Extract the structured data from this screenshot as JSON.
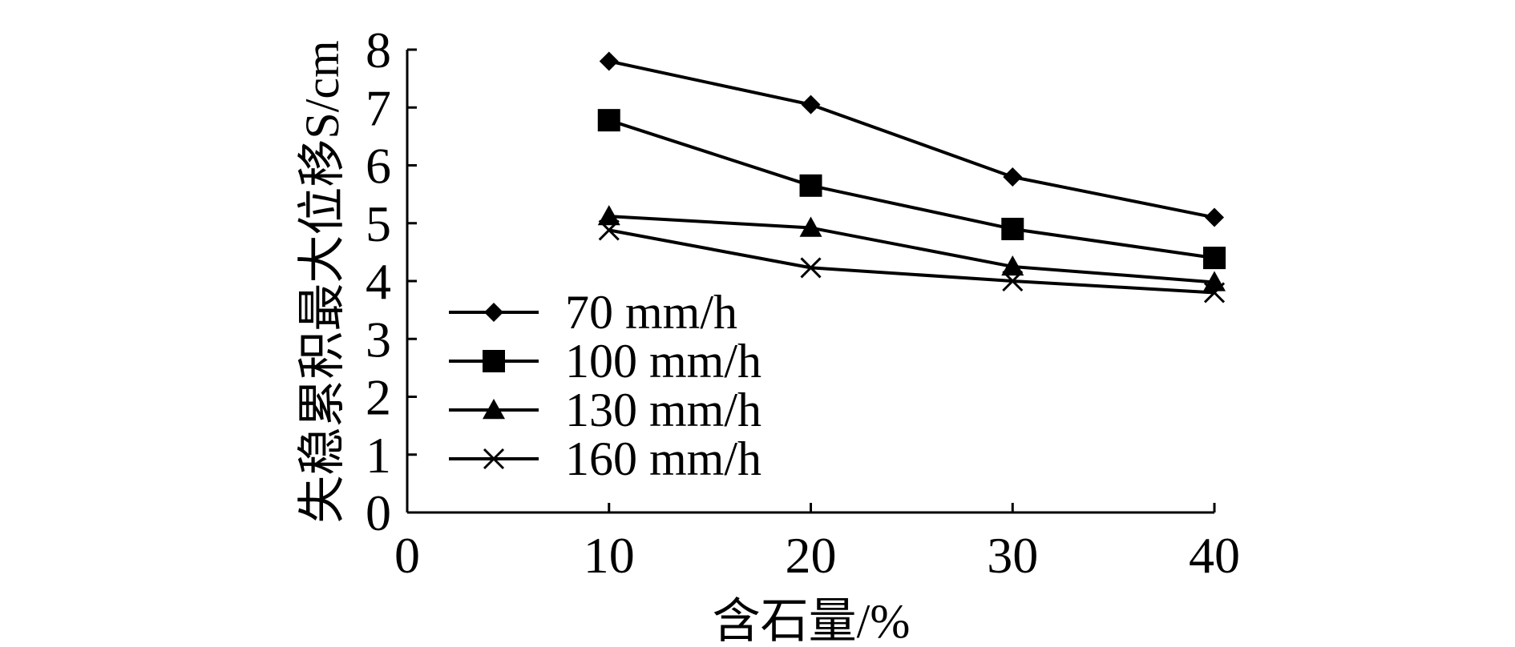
{
  "chart_data": {
    "type": "line",
    "x": [
      10,
      20,
      30,
      40
    ],
    "series": [
      {
        "name": "70 mm/h",
        "marker": "diamond",
        "values": [
          7.8,
          7.05,
          5.8,
          5.1
        ]
      },
      {
        "name": "100 mm/h",
        "marker": "square",
        "values": [
          6.78,
          5.65,
          4.9,
          4.4
        ]
      },
      {
        "name": "130 mm/h",
        "marker": "triangle",
        "values": [
          5.12,
          4.92,
          4.25,
          3.98
        ]
      },
      {
        "name": "160 mm/h",
        "marker": "cross",
        "values": [
          4.88,
          4.23,
          4.0,
          3.8
        ]
      }
    ],
    "xlabel": "含石量/%",
    "ylabel": "失稳累积最大位移S/cm",
    "xlim": [
      0,
      40
    ],
    "ylim": [
      0,
      8
    ],
    "xticks": [
      "0",
      "10",
      "20",
      "30",
      "40"
    ],
    "yticks": [
      "0",
      "1",
      "2",
      "3",
      "4",
      "5",
      "6",
      "7",
      "8"
    ],
    "grid": false,
    "legend_position": "lower-left",
    "colors": {
      "line": "#000000",
      "background": "#ffffff"
    }
  }
}
